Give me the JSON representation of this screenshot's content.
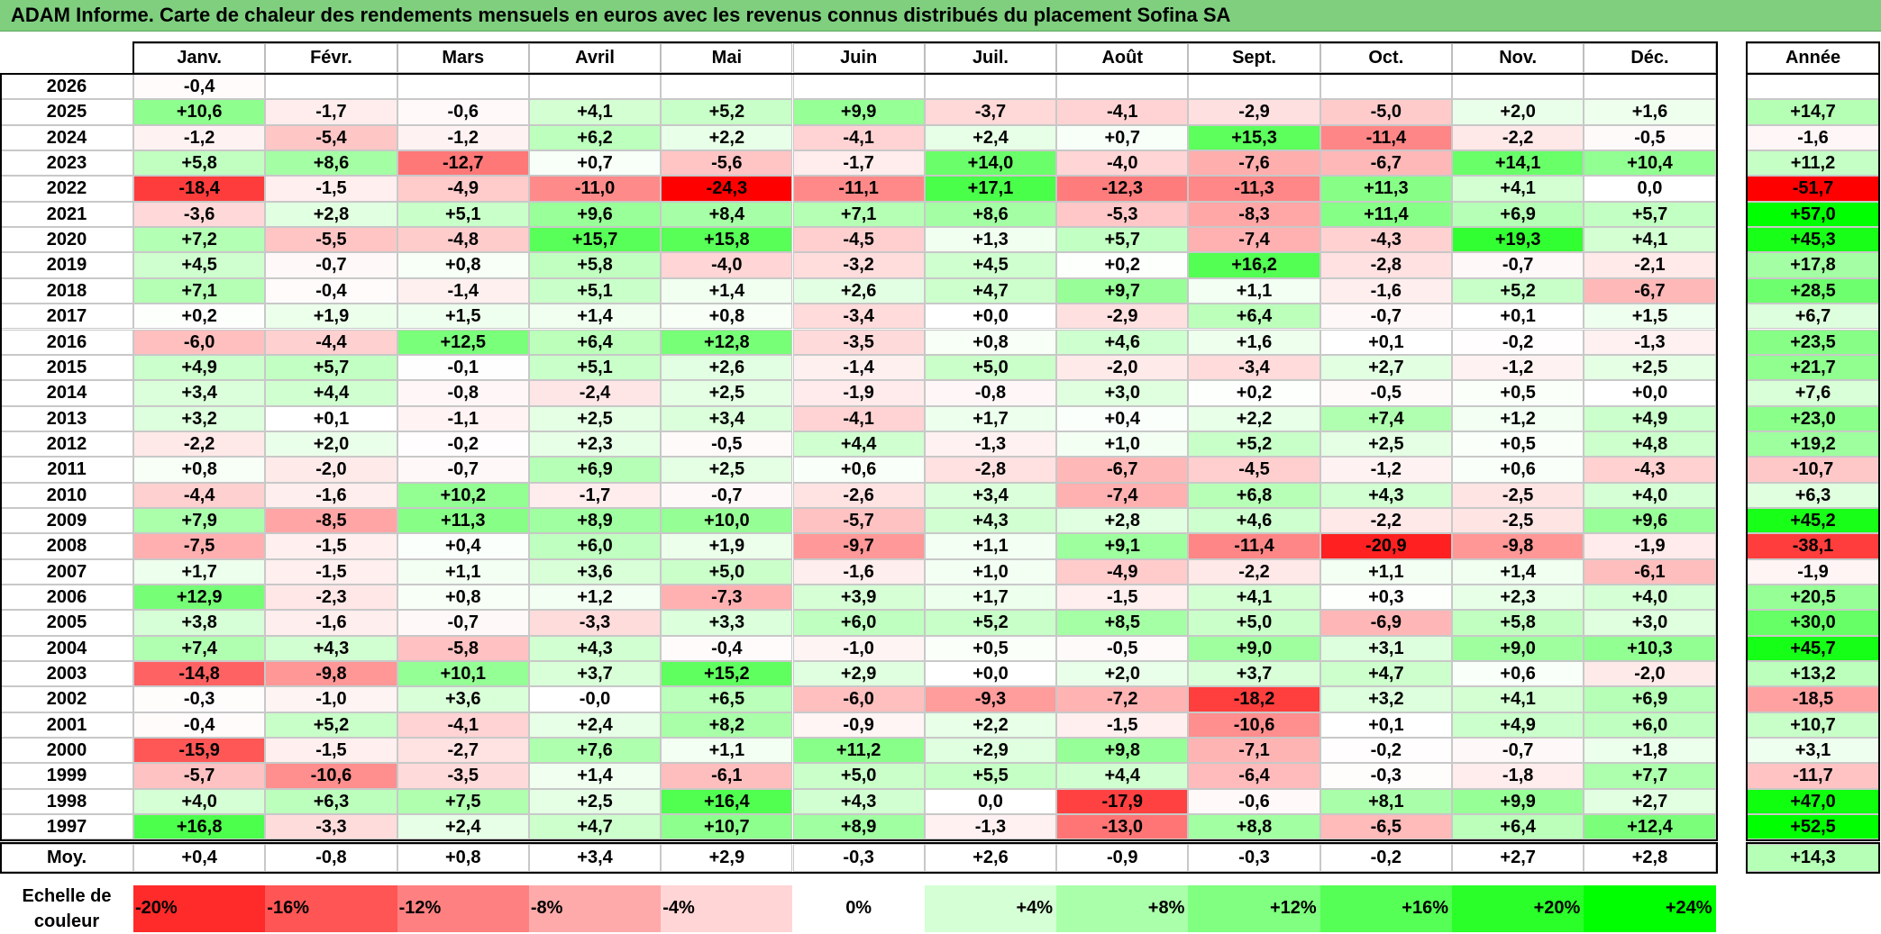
{
  "title": "ADAM Informe. Carte de chaleur des rendements mensuels en euros avec les revenus connus distribués du placement Sofina SA",
  "chart_data": {
    "type": "heatmap",
    "title": "ADAM Informe. Carte de chaleur des rendements mensuels en euros avec les revenus connus distribués du placement Sofina SA",
    "months": [
      "Janv.",
      "Févr.",
      "Mars",
      "Avril",
      "Mai",
      "Juin",
      "Juil.",
      "Août",
      "Sept.",
      "Oct.",
      "Nov.",
      "Déc."
    ],
    "annual_header": "Année",
    "rows": [
      {
        "year": "2026",
        "values": [
          "-0,4",
          "",
          "",
          "",
          "",
          "",
          "",
          "",
          "",
          "",
          "",
          ""
        ],
        "annual": ""
      },
      {
        "year": "2025",
        "values": [
          "+10,6",
          "-1,7",
          "-0,6",
          "+4,1",
          "+5,2",
          "+9,9",
          "-3,7",
          "-4,1",
          "-2,9",
          "-5,0",
          "+2,0",
          "+1,6"
        ],
        "annual": "+14,7"
      },
      {
        "year": "2024",
        "values": [
          "-1,2",
          "-5,4",
          "-1,2",
          "+6,2",
          "+2,2",
          "-4,1",
          "+2,4",
          "+0,7",
          "+15,3",
          "-11,4",
          "-2,2",
          "-0,5"
        ],
        "annual": "-1,6"
      },
      {
        "year": "2023",
        "values": [
          "+5,8",
          "+8,6",
          "-12,7",
          "+0,7",
          "-5,6",
          "-1,7",
          "+14,0",
          "-4,0",
          "-7,6",
          "-6,7",
          "+14,1",
          "+10,4"
        ],
        "annual": "+11,2"
      },
      {
        "year": "2022",
        "values": [
          "-18,4",
          "-1,5",
          "-4,9",
          "-11,0",
          "-24,3",
          "-11,1",
          "+17,1",
          "-12,3",
          "-11,3",
          "+11,3",
          "+4,1",
          "0,0"
        ],
        "annual": "-51,7"
      },
      {
        "year": "2021",
        "values": [
          "-3,6",
          "+2,8",
          "+5,1",
          "+9,6",
          "+8,4",
          "+7,1",
          "+8,6",
          "-5,3",
          "-8,3",
          "+11,4",
          "+6,9",
          "+5,7"
        ],
        "annual": "+57,0"
      },
      {
        "year": "2020",
        "values": [
          "+7,2",
          "-5,5",
          "-4,8",
          "+15,7",
          "+15,8",
          "-4,5",
          "+1,3",
          "+5,7",
          "-7,4",
          "-4,3",
          "+19,3",
          "+4,1"
        ],
        "annual": "+45,3"
      },
      {
        "year": "2019",
        "values": [
          "+4,5",
          "-0,7",
          "+0,8",
          "+5,8",
          "-4,0",
          "-3,2",
          "+4,5",
          "+0,2",
          "+16,2",
          "-2,8",
          "-0,7",
          "-2,1"
        ],
        "annual": "+17,8"
      },
      {
        "year": "2018",
        "values": [
          "+7,1",
          "-0,4",
          "-1,4",
          "+5,1",
          "+1,4",
          "+2,6",
          "+4,7",
          "+9,7",
          "+1,1",
          "-1,6",
          "+5,2",
          "-6,7"
        ],
        "annual": "+28,5"
      },
      {
        "year": "2017",
        "values": [
          "+0,2",
          "+1,9",
          "+1,5",
          "+1,4",
          "+0,8",
          "-3,4",
          "+0,0",
          "-2,9",
          "+6,4",
          "-0,7",
          "+0,1",
          "+1,5"
        ],
        "annual": "+6,7"
      },
      {
        "year": "2016",
        "values": [
          "-6,0",
          "-4,4",
          "+12,5",
          "+6,4",
          "+12,8",
          "-3,5",
          "+0,8",
          "+4,6",
          "+1,6",
          "+0,1",
          "-0,2",
          "-1,3"
        ],
        "annual": "+23,5"
      },
      {
        "year": "2015",
        "values": [
          "+4,9",
          "+5,7",
          "-0,1",
          "+5,1",
          "+2,6",
          "-1,4",
          "+5,0",
          "-2,0",
          "-3,4",
          "+2,7",
          "-1,2",
          "+2,5"
        ],
        "annual": "+21,7"
      },
      {
        "year": "2014",
        "values": [
          "+3,4",
          "+4,4",
          "-0,8",
          "-2,4",
          "+2,5",
          "-1,9",
          "-0,8",
          "+3,0",
          "+0,2",
          "-0,5",
          "+0,5",
          "+0,0"
        ],
        "annual": "+7,6"
      },
      {
        "year": "2013",
        "values": [
          "+3,2",
          "+0,1",
          "-1,1",
          "+2,5",
          "+3,4",
          "-4,1",
          "+1,7",
          "+0,4",
          "+2,2",
          "+7,4",
          "+1,2",
          "+4,9"
        ],
        "annual": "+23,0"
      },
      {
        "year": "2012",
        "values": [
          "-2,2",
          "+2,0",
          "-0,2",
          "+2,3",
          "-0,5",
          "+4,4",
          "-1,3",
          "+1,0",
          "+5,2",
          "+2,5",
          "+0,5",
          "+4,8"
        ],
        "annual": "+19,2"
      },
      {
        "year": "2011",
        "values": [
          "+0,8",
          "-2,0",
          "-0,7",
          "+6,9",
          "+2,5",
          "+0,6",
          "-2,8",
          "-6,7",
          "-4,5",
          "-1,2",
          "+0,6",
          "-4,3"
        ],
        "annual": "-10,7"
      },
      {
        "year": "2010",
        "values": [
          "-4,4",
          "-1,6",
          "+10,2",
          "-1,7",
          "-0,7",
          "-2,6",
          "+3,4",
          "-7,4",
          "+6,8",
          "+4,3",
          "-2,5",
          "+4,0"
        ],
        "annual": "+6,3"
      },
      {
        "year": "2009",
        "values": [
          "+7,9",
          "-8,5",
          "+11,3",
          "+8,9",
          "+10,0",
          "-5,7",
          "+4,3",
          "+2,8",
          "+4,6",
          "-2,2",
          "-2,5",
          "+9,6"
        ],
        "annual": "+45,2"
      },
      {
        "year": "2008",
        "values": [
          "-7,5",
          "-1,5",
          "+0,4",
          "+6,0",
          "+1,9",
          "-9,7",
          "+1,1",
          "+9,1",
          "-11,4",
          "-20,9",
          "-9,8",
          "-1,9"
        ],
        "annual": "-38,1"
      },
      {
        "year": "2007",
        "values": [
          "+1,7",
          "-1,5",
          "+1,1",
          "+3,6",
          "+5,0",
          "-1,6",
          "+1,0",
          "-4,9",
          "-2,2",
          "+1,1",
          "+1,4",
          "-6,1"
        ],
        "annual": "-1,9"
      },
      {
        "year": "2006",
        "values": [
          "+12,9",
          "-2,3",
          "+0,8",
          "+1,2",
          "-7,3",
          "+3,9",
          "+1,7",
          "-1,5",
          "+4,1",
          "+0,3",
          "+2,3",
          "+4,0"
        ],
        "annual": "+20,5"
      },
      {
        "year": "2005",
        "values": [
          "+3,8",
          "-1,6",
          "-0,7",
          "-3,3",
          "+3,3",
          "+6,0",
          "+5,2",
          "+8,5",
          "+5,0",
          "-6,9",
          "+5,8",
          "+3,0"
        ],
        "annual": "+30,0"
      },
      {
        "year": "2004",
        "values": [
          "+7,4",
          "+4,3",
          "-5,8",
          "+4,3",
          "-0,4",
          "-1,0",
          "+0,5",
          "-0,5",
          "+9,0",
          "+3,1",
          "+9,0",
          "+10,3"
        ],
        "annual": "+45,7"
      },
      {
        "year": "2003",
        "values": [
          "-14,8",
          "-9,8",
          "+10,1",
          "+3,7",
          "+15,2",
          "+2,9",
          "+0,0",
          "+2,0",
          "+3,7",
          "+4,7",
          "+0,6",
          "-2,0"
        ],
        "annual": "+13,2"
      },
      {
        "year": "2002",
        "values": [
          "-0,3",
          "-1,0",
          "+3,6",
          "-0,0",
          "+6,5",
          "-6,0",
          "-9,3",
          "-7,2",
          "-18,2",
          "+3,2",
          "+4,1",
          "+6,9"
        ],
        "annual": "-18,5"
      },
      {
        "year": "2001",
        "values": [
          "-0,4",
          "+5,2",
          "-4,1",
          "+2,4",
          "+8,2",
          "-0,9",
          "+2,2",
          "-1,5",
          "-10,6",
          "+0,1",
          "+4,9",
          "+6,0"
        ],
        "annual": "+10,7"
      },
      {
        "year": "2000",
        "values": [
          "-15,9",
          "-1,5",
          "-2,7",
          "+7,6",
          "+1,1",
          "+11,2",
          "+2,9",
          "+9,8",
          "-7,1",
          "-0,2",
          "-0,7",
          "+1,8"
        ],
        "annual": "+3,1"
      },
      {
        "year": "1999",
        "values": [
          "-5,7",
          "-10,6",
          "-3,5",
          "+1,4",
          "-6,1",
          "+5,0",
          "+5,5",
          "+4,4",
          "-6,4",
          "-0,3",
          "-1,8",
          "+7,7"
        ],
        "annual": "-11,7"
      },
      {
        "year": "1998",
        "values": [
          "+4,0",
          "+6,3",
          "+7,5",
          "+2,5",
          "+16,4",
          "+4,3",
          "0,0",
          "-17,9",
          "-0,6",
          "+8,1",
          "+9,9",
          "+2,7"
        ],
        "annual": "+47,0"
      },
      {
        "year": "1997",
        "values": [
          "+16,8",
          "-3,3",
          "+2,4",
          "+4,7",
          "+10,7",
          "+8,9",
          "-1,3",
          "-13,0",
          "+8,8",
          "-6,5",
          "+6,4",
          "+12,4"
        ],
        "annual": "+52,5"
      }
    ],
    "average": {
      "label": "Moy.",
      "values": [
        "+0,4",
        "-0,8",
        "+0,8",
        "+3,4",
        "+2,9",
        "-0,3",
        "+2,6",
        "-0,9",
        "-0,3",
        "-0,2",
        "+2,7",
        "+2,8"
      ],
      "annual": "+14,3"
    },
    "scale": {
      "label_line1": "Echelle de",
      "label_line2": "couleur",
      "steps": [
        "-20%",
        "-16%",
        "-12%",
        "-8%",
        "-4%",
        "0%",
        "+4%",
        "+8%",
        "+12%",
        "+16%",
        "+20%",
        "+24%"
      ],
      "step_values": [
        -20,
        -16,
        -12,
        -8,
        -4,
        0,
        4,
        8,
        12,
        16,
        20,
        24
      ]
    },
    "colors": {
      "negative_max": "#ff0000",
      "neutral": "#ffffff",
      "positive_max": "#00ff00",
      "title_bar": "#7fcf7f"
    }
  }
}
